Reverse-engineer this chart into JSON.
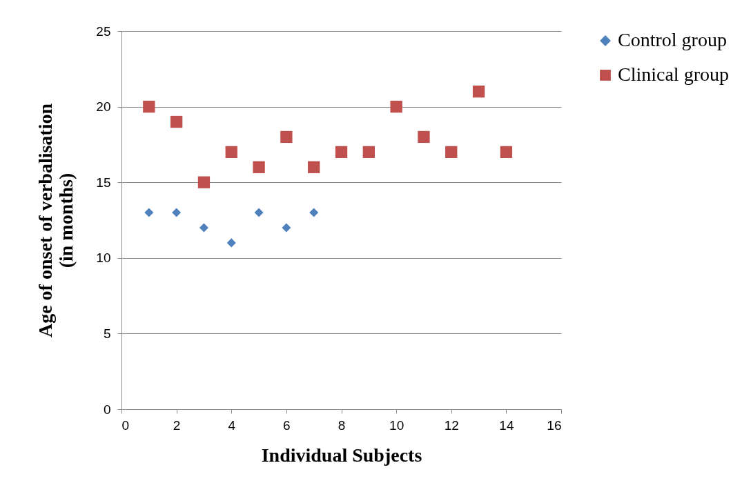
{
  "chart_data": {
    "type": "scatter",
    "xlabel": "Individual Subjects",
    "ylabel": "Age of onset of verbalisation\n(in months)",
    "xlim": [
      0,
      16
    ],
    "xticks": [
      0,
      2,
      4,
      6,
      8,
      10,
      12,
      14,
      16
    ],
    "ylim": [
      0,
      25
    ],
    "yticks": [
      0,
      5,
      10,
      15,
      20,
      25
    ],
    "grid": "y",
    "legend": "right",
    "series": [
      {
        "name": "Control group",
        "color": "#4f81bd",
        "marker": "diamond",
        "x": [
          1,
          2,
          3,
          4,
          5,
          6,
          7
        ],
        "values": [
          13,
          13,
          12,
          11,
          13,
          12,
          13
        ]
      },
      {
        "name": "Clinical group",
        "color": "#c0504d",
        "marker": "square",
        "x": [
          1,
          2,
          3,
          4,
          5,
          6,
          7,
          8,
          9,
          10,
          11,
          12,
          13,
          14
        ],
        "values": [
          20,
          19,
          15,
          17,
          16,
          18,
          16,
          17,
          17,
          20,
          18,
          17,
          21,
          17
        ]
      }
    ]
  }
}
